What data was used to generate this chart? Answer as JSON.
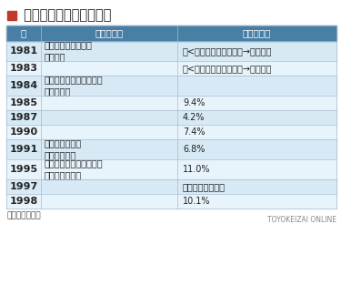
{
  "title": "■ 北総線運賃値上げの軌跡",
  "title_color": "#222222",
  "title_square_color": "#c0392b",
  "header_bg": "#4a7fa5",
  "header_text_color": "#ffffff",
  "row_bg_even": "#d6e9f5",
  "row_bg_odd": "#e8f4fb",
  "col_year_header": "年",
  "col_infra_header": "北総線整備",
  "col_fare_header": "運賃値上げ",
  "footer_text": "（出所）北実会",
  "footer_right": "TOYOKEIZAI ONLINE",
  "rows": [
    {
      "year": "1981",
      "infra": "第２期区間工事施工\n認可申請",
      "fare": "（<３ｋｍ）　１１０円→１２０円"
    },
    {
      "year": "1983",
      "infra": "",
      "fare": "（<３ｋｍ）　１２０円→１３０円"
    },
    {
      "year": "1984",
      "infra": "小室－千葉ニュータウン\n中央間開業",
      "fare": ""
    },
    {
      "year": "1985",
      "infra": "",
      "fare": "9.4%"
    },
    {
      "year": "1987",
      "infra": "",
      "fare": "4.2%"
    },
    {
      "year": "1990",
      "infra": "",
      "fare": "7.4%"
    },
    {
      "year": "1991",
      "infra": "第２期区間竣工\n営業運転開始",
      "fare": "6.8%"
    },
    {
      "year": "1995",
      "infra": "千葉ニュータウン中央－\n印西牧の原開通",
      "fare": "11.0%"
    },
    {
      "year": "1997",
      "infra": "",
      "fare": "（消費税改訂分）"
    },
    {
      "year": "1998",
      "infra": "",
      "fare": "10.1%"
    }
  ]
}
